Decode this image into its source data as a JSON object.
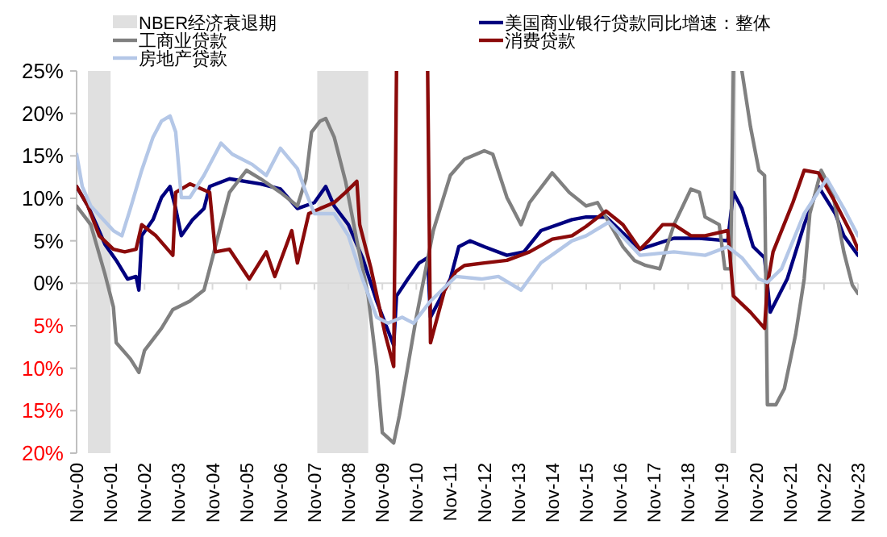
{
  "chart_data": {
    "type": "line",
    "legend": "top",
    "line_style": "solid",
    "marker": "none",
    "xlim": [
      "2000-11",
      "2023-11"
    ],
    "xticks": [
      {
        "value": "2000-11",
        "label": "Nov-00"
      },
      {
        "value": "2001-11",
        "label": "Nov-01"
      },
      {
        "value": "2002-11",
        "label": "Nov-02"
      },
      {
        "value": "2003-11",
        "label": "Nov-03"
      },
      {
        "value": "2004-11",
        "label": "Nov-04"
      },
      {
        "value": "2005-11",
        "label": "Nov-05"
      },
      {
        "value": "2006-11",
        "label": "Nov-06"
      },
      {
        "value": "2007-11",
        "label": "Nov-07"
      },
      {
        "value": "2008-11",
        "label": "Nov-08"
      },
      {
        "value": "2009-11",
        "label": "Nov-09"
      },
      {
        "value": "2010-11",
        "label": "Nov-10"
      },
      {
        "value": "2011-11",
        "label": "Nov-11"
      },
      {
        "value": "2012-11",
        "label": "Nov-12"
      },
      {
        "value": "2013-11",
        "label": "Nov-13"
      },
      {
        "value": "2014-11",
        "label": "Nov-14"
      },
      {
        "value": "2015-11",
        "label": "Nov-15"
      },
      {
        "value": "2016-11",
        "label": "Nov-16"
      },
      {
        "value": "2017-11",
        "label": "Nov-17"
      },
      {
        "value": "2018-11",
        "label": "Nov-18"
      },
      {
        "value": "2019-11",
        "label": "Nov-19"
      },
      {
        "value": "2020-11",
        "label": "Nov-20"
      },
      {
        "value": "2021-11",
        "label": "Nov-21"
      },
      {
        "value": "2022-11",
        "label": "Nov-22"
      },
      {
        "value": "2023-11",
        "label": "Nov-23"
      }
    ],
    "ylim": [
      -20,
      25
    ],
    "yticks": [
      {
        "value": 25,
        "label": "25%"
      },
      {
        "value": 20,
        "label": "20%"
      },
      {
        "value": 15,
        "label": "15%"
      },
      {
        "value": 10,
        "label": "10%"
      },
      {
        "value": 5,
        "label": "5%"
      },
      {
        "value": 0,
        "label": "0%"
      },
      {
        "value": -5,
        "label": "5%"
      },
      {
        "value": -10,
        "label": "10%"
      },
      {
        "value": -15,
        "label": "15%"
      },
      {
        "value": -20,
        "label": "20%"
      }
    ],
    "bands": [
      {
        "axis": "x",
        "from": "2001-03",
        "to": "2001-11",
        "label": "NBER经济衰退期",
        "color": "#e0e0e0"
      },
      {
        "axis": "x",
        "from": "2007-12",
        "to": "2009-06",
        "color": "#e0e0e0"
      },
      {
        "axis": "x",
        "from": "2020-02",
        "to": "2020-04",
        "color": "#e0e0e0"
      }
    ],
    "series": [
      {
        "name": "美国商业银行贷款同比增速：整体",
        "color": "#00007f",
        "x": [
          "2000-11",
          "2001-03",
          "2001-06",
          "2001-09",
          "2002-01",
          "2002-05",
          "2002-08",
          "2002-09",
          "2002-10",
          "2003-02",
          "2003-05",
          "2003-08",
          "2003-10",
          "2003-12",
          "2004-04",
          "2004-08",
          "2004-10",
          "2005-05",
          "2006-04",
          "2006-11",
          "2007-05",
          "2007-11",
          "2008-03",
          "2008-06",
          "2008-11",
          "2009-04",
          "2009-09",
          "2010-03",
          "2010-04",
          "2010-08",
          "2010-12",
          "2011-03",
          "2011-04",
          "2011-11",
          "2012-02",
          "2012-06",
          "2012-11",
          "2013-07",
          "2014-01",
          "2014-07",
          "2015-06",
          "2015-11",
          "2016-06",
          "2017-06",
          "2018-06",
          "2019-03",
          "2020-01",
          "2020-03",
          "2020-06",
          "2020-10",
          "2021-02",
          "2021-04",
          "2021-10",
          "2022-04",
          "2022-09",
          "2023-03",
          "2023-06",
          "2023-11"
        ],
        "values": [
          11.4,
          9.1,
          6.9,
          4.6,
          2.7,
          0.5,
          0.8,
          -0.8,
          5.6,
          7.5,
          10.1,
          11.4,
          8.8,
          5.6,
          7.5,
          8.8,
          11.4,
          12.3,
          11.7,
          11.1,
          8.8,
          9.5,
          11.4,
          9.1,
          6.9,
          3,
          -2.1,
          -7.3,
          -1.5,
          0.5,
          2.4,
          3,
          -4,
          0.5,
          4.3,
          5,
          4.3,
          3.3,
          3.7,
          6.2,
          7.5,
          7.8,
          7.8,
          4,
          5.3,
          5.3,
          5,
          10.7,
          8.8,
          4.3,
          3,
          -3.4,
          0.5,
          6.9,
          11.4,
          8.2,
          5.6,
          3.3
        ]
      },
      {
        "name": "工商业贷款",
        "color": "#808080",
        "x": [
          "2000-11",
          "2001-04",
          "2001-09",
          "2001-12",
          "2002-01",
          "2002-06",
          "2002-09",
          "2002-11",
          "2003-05",
          "2003-09",
          "2004-03",
          "2004-08",
          "2004-10",
          "2005-02",
          "2005-05",
          "2005-11",
          "2006-04",
          "2006-11",
          "2007-05",
          "2007-08",
          "2007-10",
          "2008-01",
          "2008-03",
          "2008-06",
          "2008-10",
          "2009-02",
          "2009-06",
          "2009-09",
          "2009-11",
          "2010-03",
          "2010-05",
          "2010-11",
          "2011-05",
          "2011-11",
          "2012-04",
          "2012-11",
          "2013-02",
          "2013-07",
          "2013-12",
          "2014-03",
          "2014-11",
          "2015-05",
          "2015-11",
          "2016-03",
          "2016-12",
          "2017-04",
          "2017-08",
          "2018-01",
          "2018-06",
          "2018-12",
          "2019-03",
          "2019-05",
          "2019-10",
          "2019-12",
          "2020-02",
          "2020-03",
          "2020-06",
          "2020-09",
          "2020-12",
          "2021-02",
          "2021-03",
          "2021-06",
          "2021-09",
          "2022-01",
          "2022-04",
          "2022-06",
          "2022-10",
          "2023-02",
          "2023-06",
          "2023-09",
          "2023-11"
        ],
        "values": [
          9.1,
          6.9,
          1.1,
          -2.8,
          -7,
          -8.9,
          -10.5,
          -7.9,
          -5.3,
          -3.1,
          -2.1,
          -0.8,
          1.7,
          6.9,
          10.7,
          13.3,
          12.3,
          10.7,
          9.1,
          12.3,
          17.8,
          19.1,
          19.4,
          17.2,
          12,
          5,
          -1.5,
          -9.8,
          -17.6,
          -18.8,
          -15.6,
          -4,
          6.2,
          12.7,
          14.6,
          15.6,
          15.2,
          10.1,
          6.9,
          9.5,
          13,
          10.7,
          9.1,
          9.5,
          4.3,
          2.7,
          2.1,
          1.7,
          6.9,
          11.1,
          10.7,
          7.8,
          6.9,
          1.7,
          1.7,
          25,
          25,
          18.5,
          13.3,
          12.7,
          -14.3,
          -14.3,
          -12.4,
          -6,
          0.5,
          8.2,
          13.3,
          10.7,
          3.7,
          -0.2,
          -1.2
        ]
      },
      {
        "name": "消费贷款",
        "color": "#8b0a0a",
        "x": [
          "2000-11",
          "2001-03",
          "2001-07",
          "2001-12",
          "2002-04",
          "2002-08",
          "2002-10",
          "2003-03",
          "2003-09",
          "2003-10",
          "2004-03",
          "2004-10",
          "2004-12",
          "2005-05",
          "2005-12",
          "2006-06",
          "2006-09",
          "2007-03",
          "2007-05",
          "2007-09",
          "2008-01",
          "2008-06",
          "2008-10",
          "2009-02",
          "2009-03",
          "2009-07",
          "2009-12",
          "2010-03",
          "2010-04",
          "2011-03",
          "2011-04",
          "2011-09",
          "2012-01",
          "2012-04",
          "2012-11",
          "2013-07",
          "2014-03",
          "2014-11",
          "2015-06",
          "2015-11",
          "2016-06",
          "2016-12",
          "2017-06",
          "2017-09",
          "2018-02",
          "2018-06",
          "2018-12",
          "2019-05",
          "2020-01",
          "2020-03",
          "2020-09",
          "2021-02",
          "2021-03",
          "2021-05",
          "2021-12",
          "2022-04",
          "2022-09",
          "2023-03",
          "2023-09",
          "2023-11"
        ],
        "values": [
          11.4,
          9.1,
          5.6,
          4,
          3.7,
          4,
          6.9,
          5.6,
          3.3,
          10.7,
          11.7,
          10.7,
          3.7,
          4,
          0.5,
          3.7,
          0.8,
          6.2,
          2.4,
          8.2,
          8.8,
          9.5,
          10.7,
          12,
          6.9,
          1.7,
          -6,
          -9.8,
          25,
          25,
          -7,
          -0.8,
          1.4,
          2.1,
          2.4,
          2.7,
          3.7,
          5.2,
          5.6,
          6.7,
          8.5,
          6.9,
          4,
          5,
          6.9,
          6.9,
          5.6,
          5.6,
          6.2,
          -1.5,
          -3.4,
          -5.3,
          -0.2,
          3.7,
          9.5,
          13.3,
          13,
          9.5,
          5.6,
          4
        ]
      },
      {
        "name": "房地产贷款",
        "color": "#b4c7e7",
        "x": [
          "2000-11",
          "2001-01",
          "2001-04",
          "2001-12",
          "2002-03",
          "2002-06",
          "2002-10",
          "2003-02",
          "2003-05",
          "2003-08",
          "2003-10",
          "2003-12",
          "2004-03",
          "2004-08",
          "2005-02",
          "2005-06",
          "2006-01",
          "2006-06",
          "2006-11",
          "2007-05",
          "2007-08",
          "2007-11",
          "2008-06",
          "2008-11",
          "2009-04",
          "2009-09",
          "2010-01",
          "2010-06",
          "2010-10",
          "2011-04",
          "2012-01",
          "2012-10",
          "2013-04",
          "2013-12",
          "2014-07",
          "2015-06",
          "2015-11",
          "2016-07",
          "2017-06",
          "2018-06",
          "2019-05",
          "2020-01",
          "2020-06",
          "2020-12",
          "2021-03",
          "2021-08",
          "2022-04",
          "2022-12",
          "2023-06",
          "2023-11"
        ],
        "values": [
          15.2,
          11.4,
          9.1,
          6.2,
          5.6,
          8.8,
          13.3,
          17.2,
          19.1,
          19.7,
          17.8,
          10.1,
          10.1,
          12.7,
          16.5,
          15.2,
          14,
          12.7,
          15.9,
          13.5,
          10.7,
          8.2,
          8.2,
          5.6,
          0.5,
          -4,
          -4.7,
          -4,
          -4.7,
          -2.1,
          0.8,
          0.5,
          0.8,
          -0.8,
          2.4,
          5,
          5.6,
          7.2,
          3.3,
          3.7,
          3.3,
          4.3,
          3,
          0.5,
          0.1,
          1.7,
          8.2,
          12.3,
          8.8,
          5.6
        ]
      }
    ]
  }
}
